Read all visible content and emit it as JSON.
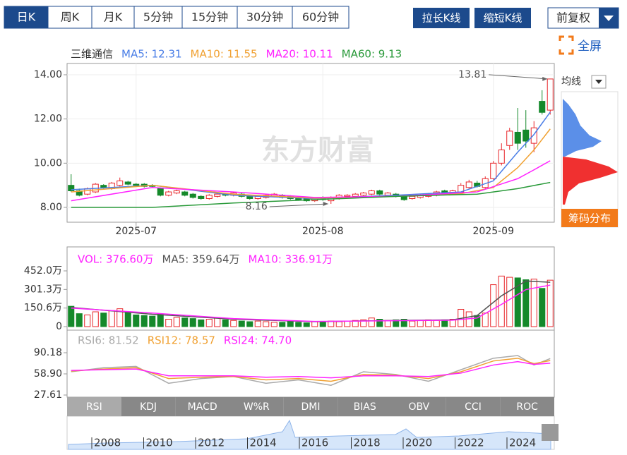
{
  "toolbar": {
    "periods": [
      "日K",
      "周K",
      "月K",
      "5分钟",
      "15分钟",
      "30分钟",
      "60分钟"
    ],
    "active_period": 0,
    "buttons": [
      "拉长K线",
      "缩短K线"
    ],
    "adjust": "前复权",
    "fullscreen": "全屏",
    "ma_menu": "均线",
    "chips": "筹码分布"
  },
  "watermark": "东方财富",
  "chart_data": [
    {
      "type": "candlestick",
      "title": "三维通信",
      "xlim": [
        -0.5,
        59.5
      ],
      "xticks": [
        {
          "value": 8,
          "label": "2025-07"
        },
        {
          "value": 31,
          "label": "2025-08"
        },
        {
          "value": 52,
          "label": "2025-09"
        }
      ],
      "ylim": [
        7.33,
        14.51
      ],
      "yticks": [
        {
          "value": 14,
          "label": "14.00"
        },
        {
          "value": 12,
          "label": "12.00"
        },
        {
          "value": 10,
          "label": "10.00"
        },
        {
          "value": 8,
          "label": "8.00"
        }
      ],
      "grid": true,
      "up_color": "#e8262b",
      "down_color": "#15892b",
      "ohlc": [
        [
          9.0,
          9.5,
          8.7,
          8.75
        ],
        [
          8.75,
          8.85,
          8.5,
          8.55
        ],
        [
          8.6,
          8.9,
          8.55,
          8.85
        ],
        [
          8.7,
          9.1,
          8.65,
          9.05
        ],
        [
          9.0,
          9.05,
          8.85,
          8.9
        ],
        [
          8.85,
          9.15,
          8.8,
          9.1
        ],
        [
          9.0,
          9.35,
          8.95,
          9.2
        ],
        [
          9.15,
          9.2,
          9.0,
          9.05
        ],
        [
          9.05,
          9.1,
          8.95,
          9.0
        ],
        [
          9.05,
          9.1,
          8.9,
          8.95
        ],
        [
          9.0,
          9.05,
          8.9,
          8.95
        ],
        [
          8.85,
          8.9,
          8.5,
          8.55
        ],
        [
          8.55,
          8.75,
          8.5,
          8.7
        ],
        [
          8.65,
          8.8,
          8.6,
          8.75
        ],
        [
          8.7,
          8.75,
          8.5,
          8.55
        ],
        [
          8.6,
          8.65,
          8.4,
          8.45
        ],
        [
          8.5,
          8.55,
          8.35,
          8.4
        ],
        [
          8.4,
          8.6,
          8.35,
          8.55
        ],
        [
          8.5,
          8.65,
          8.45,
          8.6
        ],
        [
          8.6,
          8.65,
          8.5,
          8.55
        ],
        [
          8.55,
          8.7,
          8.5,
          8.65
        ],
        [
          8.6,
          8.65,
          8.45,
          8.5
        ],
        [
          8.5,
          8.55,
          8.35,
          8.4
        ],
        [
          8.4,
          8.55,
          8.35,
          8.5
        ],
        [
          8.45,
          8.6,
          8.4,
          8.55
        ],
        [
          8.5,
          8.65,
          8.45,
          8.6
        ],
        [
          8.55,
          8.6,
          8.4,
          8.45
        ],
        [
          8.5,
          8.55,
          8.35,
          8.4
        ],
        [
          8.45,
          8.5,
          8.3,
          8.35
        ],
        [
          8.4,
          8.45,
          8.25,
          8.3
        ],
        [
          8.3,
          8.45,
          8.25,
          8.4
        ],
        [
          8.45,
          8.5,
          8.3,
          8.35
        ],
        [
          8.3,
          8.5,
          8.16,
          8.45
        ],
        [
          8.4,
          8.6,
          8.35,
          8.55
        ],
        [
          8.5,
          8.6,
          8.45,
          8.55
        ],
        [
          8.5,
          8.65,
          8.45,
          8.6
        ],
        [
          8.55,
          8.7,
          8.5,
          8.65
        ],
        [
          8.6,
          8.8,
          8.55,
          8.75
        ],
        [
          8.75,
          8.8,
          8.55,
          8.6
        ],
        [
          8.55,
          8.7,
          8.5,
          8.65
        ],
        [
          8.6,
          8.65,
          8.45,
          8.5
        ],
        [
          8.5,
          8.55,
          8.3,
          8.35
        ],
        [
          8.4,
          8.55,
          8.35,
          8.5
        ],
        [
          8.45,
          8.6,
          8.4,
          8.55
        ],
        [
          8.5,
          8.65,
          8.45,
          8.6
        ],
        [
          8.55,
          8.75,
          8.5,
          8.7
        ],
        [
          8.75,
          8.8,
          8.55,
          8.6
        ],
        [
          8.6,
          8.8,
          8.55,
          8.75
        ],
        [
          8.7,
          9.1,
          8.65,
          9.0
        ],
        [
          8.9,
          9.25,
          8.85,
          9.15
        ],
        [
          9.1,
          9.2,
          8.9,
          8.95
        ],
        [
          8.9,
          9.4,
          8.85,
          9.3
        ],
        [
          9.3,
          10.1,
          9.25,
          10.0
        ],
        [
          10.0,
          10.9,
          9.9,
          10.6
        ],
        [
          10.8,
          11.6,
          10.6,
          11.45
        ],
        [
          11.4,
          12.5,
          10.6,
          10.9
        ],
        [
          11.5,
          12.4,
          10.7,
          11.0
        ],
        [
          10.9,
          11.9,
          10.5,
          11.6
        ],
        [
          12.8,
          13.3,
          12.2,
          12.3
        ],
        [
          12.4,
          13.81,
          12.2,
          13.81
        ]
      ],
      "series": [
        {
          "name": "MA5: 12.31",
          "color": "#4a7ee6",
          "x": [
            0,
            10,
            20,
            30,
            40,
            48,
            52,
            55,
            57,
            59
          ],
          "values": [
            8.8,
            9.0,
            8.55,
            8.4,
            8.55,
            8.7,
            9.2,
            10.5,
            11.3,
            12.31
          ]
        },
        {
          "name": "MA10: 11.55",
          "color": "#f0a030",
          "x": [
            0,
            10,
            20,
            30,
            40,
            48,
            52,
            55,
            57,
            59
          ],
          "values": [
            8.7,
            9.0,
            8.6,
            8.42,
            8.5,
            8.62,
            8.9,
            9.8,
            10.6,
            11.55
          ]
        },
        {
          "name": "MA20: 10.11",
          "color": "#ff22ff",
          "x": [
            0,
            10,
            20,
            30,
            40,
            50,
            55,
            57,
            59
          ],
          "values": [
            8.3,
            8.9,
            8.7,
            8.45,
            8.5,
            8.7,
            9.3,
            9.7,
            10.11
          ]
        },
        {
          "name": "MA60: 9.13",
          "color": "#2a9a3a",
          "x": [
            0,
            10,
            20,
            30,
            40,
            50,
            55,
            59
          ],
          "values": [
            8.0,
            8.0,
            8.2,
            8.35,
            8.5,
            8.6,
            8.85,
            9.13
          ]
        }
      ],
      "annotations": [
        {
          "label": "13.81",
          "x": 59,
          "value": 13.81
        },
        {
          "label": "8.16",
          "x": 32,
          "value": 8.16
        }
      ]
    },
    {
      "type": "bar",
      "xlim": [
        -0.5,
        59.5
      ],
      "ylim": [
        0,
        635
      ],
      "yticks": [
        {
          "value": 452.0,
          "label": "452.0万"
        },
        {
          "value": 301.3,
          "label": "301.3万"
        },
        {
          "value": 150.6,
          "label": "150.6万"
        },
        0
      ],
      "series": [
        {
          "name": "VOL: 376.60万",
          "color": "#ff22ff",
          "values": [
            165,
            105,
            95,
            120,
            110,
            130,
            145,
            120,
            95,
            90,
            85,
            100,
            60,
            75,
            70,
            65,
            55,
            60,
            70,
            55,
            50,
            45,
            40,
            45,
            40,
            35,
            35,
            40,
            35,
            30,
            40,
            35,
            45,
            40,
            45,
            50,
            55,
            70,
            60,
            50,
            55,
            60,
            45,
            50,
            55,
            50,
            55,
            60,
            140,
            120,
            90,
            110,
            340,
            410,
            400,
            395,
            380,
            385,
            310,
            376.6
          ]
        },
        {
          "name": "MA5: 359.64万",
          "type": "line",
          "color": "#555555",
          "x": [
            0,
            10,
            20,
            30,
            40,
            47,
            50,
            53,
            56,
            59
          ],
          "values": [
            155,
            100,
            60,
            40,
            50,
            55,
            90,
            250,
            370,
            359.64
          ]
        },
        {
          "name": "MA10: 336.91万",
          "type": "line",
          "color": "#ff22ff",
          "x": [
            0,
            10,
            20,
            30,
            40,
            47,
            50,
            53,
            56,
            59
          ],
          "values": [
            150,
            110,
            65,
            42,
            48,
            52,
            70,
            180,
            300,
            336.91
          ]
        }
      ]
    },
    {
      "type": "line",
      "xlim": [
        -0.5,
        59.5
      ],
      "ylim": [
        27.61,
        121.46
      ],
      "yticks": [
        90.18,
        {
          "value": 58.9,
          "label": "58.90"
        },
        27.61
      ],
      "series": [
        {
          "name": "RSI6: 81.52",
          "color": "#aaaaaa",
          "x": [
            0,
            4,
            8,
            12,
            16,
            20,
            24,
            28,
            32,
            36,
            40,
            44,
            48,
            52,
            55,
            57,
            59
          ],
          "values": [
            62,
            68,
            70,
            45,
            52,
            55,
            45,
            50,
            42,
            62,
            58,
            48,
            65,
            82,
            86,
            72,
            81.52
          ]
        },
        {
          "name": "RSI12: 78.57",
          "color": "#f0a030",
          "x": [
            0,
            4,
            8,
            12,
            16,
            20,
            24,
            28,
            32,
            36,
            40,
            44,
            48,
            52,
            55,
            57,
            59
          ],
          "values": [
            63,
            66,
            68,
            52,
            54,
            55,
            50,
            52,
            48,
            58,
            57,
            52,
            62,
            78,
            82,
            74,
            78.57
          ]
        },
        {
          "name": "RSI24: 74.70",
          "color": "#ff22ff",
          "x": [
            0,
            4,
            8,
            12,
            16,
            20,
            24,
            28,
            32,
            36,
            40,
            44,
            48,
            52,
            55,
            57,
            59
          ],
          "values": [
            64,
            65,
            66,
            56,
            56,
            56,
            54,
            55,
            53,
            56,
            56,
            55,
            60,
            72,
            77,
            73,
            74.7
          ]
        }
      ]
    }
  ],
  "indicator_tabs": [
    "RSI",
    "KDJ",
    "MACD",
    "W%R",
    "DMI",
    "BIAS",
    "OBV",
    "CCI",
    "ROC"
  ],
  "active_indicator": 0,
  "navigator_years": [
    "2008",
    "2010",
    "2012",
    "2014",
    "2016",
    "2018",
    "2020",
    "2022",
    "2024"
  ]
}
